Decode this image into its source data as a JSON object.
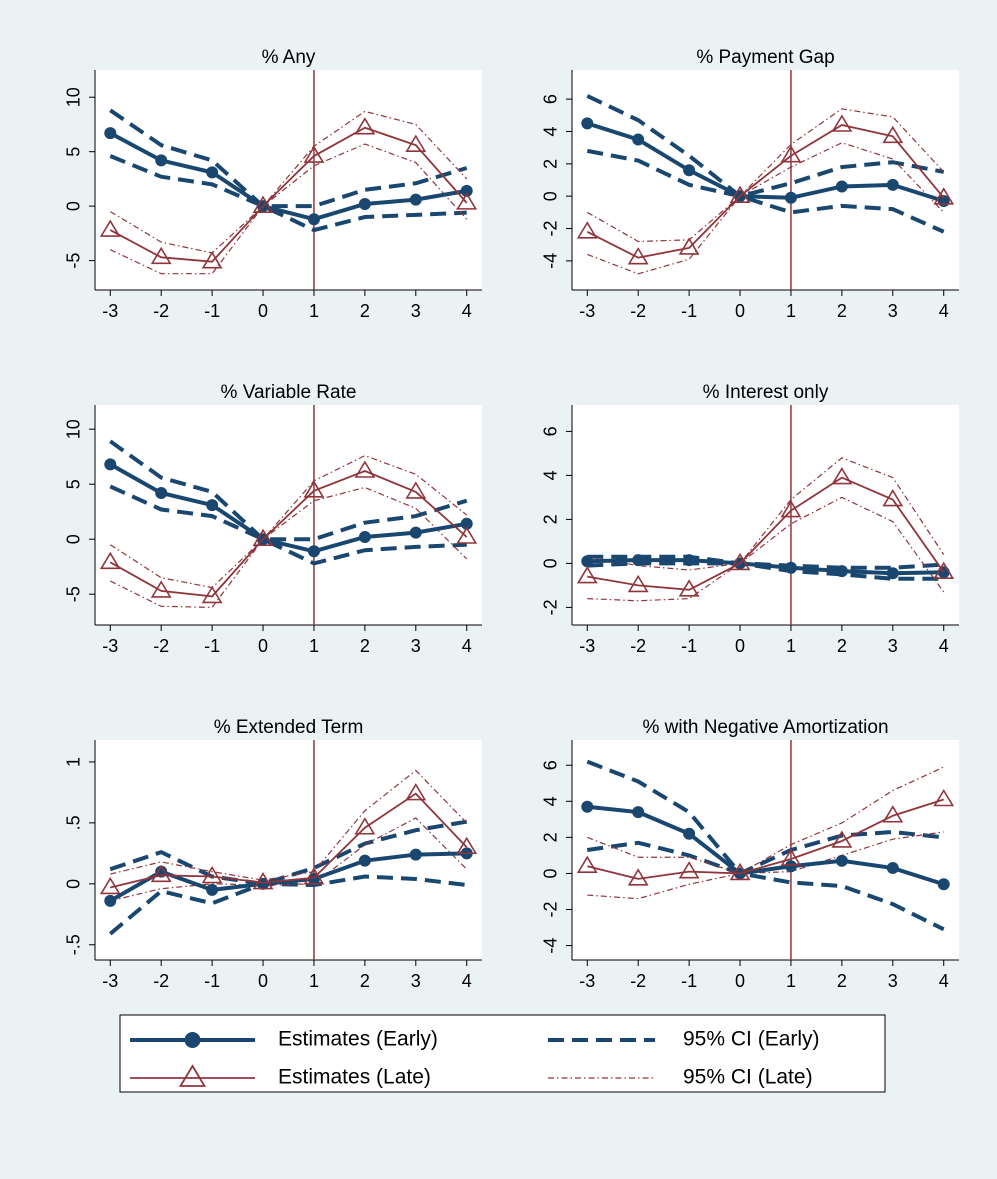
{
  "chart_data": [
    {
      "type": "line",
      "title": "% Any",
      "x": [
        -3,
        -2,
        -1,
        0,
        1,
        2,
        3,
        4
      ],
      "xlim": [
        -3.3,
        4.3
      ],
      "xticks": [
        -3,
        -2,
        -1,
        0,
        1,
        2,
        3,
        4
      ],
      "ylim": [
        -7.7,
        12.5
      ],
      "yticks": [
        -5,
        0,
        5,
        10
      ],
      "vline": 1,
      "vline_color": "#90353b",
      "series": [
        {
          "values": [
            6.7,
            4.2,
            3.1,
            0,
            -1.2,
            0.2,
            0.6,
            1.4
          ]
        },
        {
          "lower": [
            4.6,
            2.7,
            2.0,
            0,
            -2.2,
            -1.0,
            -0.8,
            -0.6
          ],
          "upper": [
            8.8,
            5.6,
            4.2,
            0,
            0,
            1.5,
            2.1,
            3.5
          ]
        },
        {
          "values": [
            -2.2,
            -4.7,
            -5.1,
            0,
            4.6,
            7.2,
            5.6,
            0.3
          ]
        },
        {
          "lower": [
            -4.0,
            -6.2,
            -6.2,
            0,
            3.7,
            5.7,
            4.0,
            -1.2
          ],
          "upper": [
            -0.5,
            -3.3,
            -4.3,
            0,
            5.5,
            8.7,
            7.5,
            2.5
          ]
        }
      ]
    },
    {
      "type": "line",
      "title": "% Payment Gap",
      "x": [
        -3,
        -2,
        -1,
        0,
        1,
        2,
        3,
        4
      ],
      "xlim": [
        -3.3,
        4.3
      ],
      "xticks": [
        -3,
        -2,
        -1,
        0,
        1,
        2,
        3,
        4
      ],
      "ylim": [
        -5.8,
        7.8
      ],
      "yticks": [
        -4,
        -2,
        0,
        2,
        4,
        6
      ],
      "vline": 1,
      "vline_color": "#90353b",
      "series": [
        {
          "values": [
            4.5,
            3.5,
            1.6,
            0,
            -0.1,
            0.6,
            0.7,
            -0.3
          ]
        },
        {
          "lower": [
            2.8,
            2.2,
            0.7,
            0,
            -1.0,
            -0.6,
            -0.8,
            -2.2
          ],
          "upper": [
            6.2,
            4.7,
            2.5,
            0,
            0.8,
            1.8,
            2.1,
            1.5
          ]
        },
        {
          "values": [
            -2.2,
            -3.8,
            -3.2,
            0,
            2.5,
            4.4,
            3.7,
            -0.1
          ]
        },
        {
          "lower": [
            -3.6,
            -4.8,
            -3.9,
            0,
            1.8,
            3.3,
            2.3,
            -1.0
          ],
          "upper": [
            -1.0,
            -2.8,
            -2.7,
            0,
            3.2,
            5.4,
            4.9,
            1.5
          ]
        }
      ]
    },
    {
      "type": "line",
      "title": "% Variable Rate",
      "x": [
        -3,
        -2,
        -1,
        0,
        1,
        2,
        3,
        4
      ],
      "xlim": [
        -3.3,
        4.3
      ],
      "xticks": [
        -3,
        -2,
        -1,
        0,
        1,
        2,
        3,
        4
      ],
      "ylim": [
        -7.8,
        12.2
      ],
      "yticks": [
        -5,
        0,
        5,
        10
      ],
      "vline": 1,
      "vline_color": "#90353b",
      "series": [
        {
          "values": [
            6.8,
            4.2,
            3.1,
            0,
            -1.1,
            0.2,
            0.6,
            1.4
          ]
        },
        {
          "lower": [
            4.8,
            2.7,
            2.1,
            0,
            -2.2,
            -1.0,
            -0.7,
            -0.5
          ],
          "upper": [
            8.9,
            5.6,
            4.3,
            0,
            0,
            1.5,
            2.1,
            3.5
          ]
        },
        {
          "values": [
            -2.1,
            -4.7,
            -5.2,
            0,
            4.4,
            6.2,
            4.3,
            0.2
          ]
        },
        {
          "lower": [
            -3.8,
            -6.1,
            -6.2,
            0,
            3.5,
            4.7,
            2.8,
            -1.8
          ],
          "upper": [
            -0.5,
            -3.5,
            -4.4,
            0,
            5.3,
            7.6,
            5.9,
            2.2
          ]
        }
      ]
    },
    {
      "type": "line",
      "title": "% Interest only",
      "x": [
        -3,
        -2,
        -1,
        0,
        1,
        2,
        3,
        4
      ],
      "xlim": [
        -3.3,
        4.3
      ],
      "xticks": [
        -3,
        -2,
        -1,
        0,
        1,
        2,
        3,
        4
      ],
      "ylim": [
        -2.8,
        7.2
      ],
      "yticks": [
        -2,
        0,
        2,
        4,
        6
      ],
      "vline": 1,
      "vline_color": "#90353b",
      "series": [
        {
          "values": [
            0.1,
            0.15,
            0.15,
            0,
            -0.2,
            -0.35,
            -0.45,
            -0.4
          ]
        },
        {
          "lower": [
            -0.1,
            0,
            0,
            0,
            -0.35,
            -0.5,
            -0.7,
            -0.7
          ],
          "upper": [
            0.3,
            0.3,
            0.3,
            0,
            -0.1,
            -0.2,
            -0.2,
            -0.05
          ]
        },
        {
          "values": [
            -0.6,
            -1.0,
            -1.2,
            0,
            2.4,
            3.9,
            2.9,
            -0.4
          ]
        },
        {
          "lower": [
            -1.6,
            -1.7,
            -1.6,
            0,
            1.8,
            3.0,
            1.9,
            -1.3
          ],
          "upper": [
            0.3,
            -0.1,
            -0.3,
            0,
            2.9,
            4.8,
            3.9,
            0.4
          ]
        }
      ]
    },
    {
      "type": "line",
      "title": "% Extended Term",
      "x": [
        -3,
        -2,
        -1,
        0,
        1,
        2,
        3,
        4
      ],
      "xlim": [
        -3.3,
        4.3
      ],
      "xticks": [
        -3,
        -2,
        -1,
        0,
        1,
        2,
        3,
        4
      ],
      "ylim": [
        -0.625,
        1.18
      ],
      "yticks": [
        {
          "value": -0.5,
          "label": "-.5"
        },
        0,
        {
          "value": 0.5,
          "label": ".5"
        },
        1
      ],
      "vline": 1,
      "vline_color": "#90353b",
      "series": [
        {
          "values": [
            -0.14,
            0.1,
            -0.05,
            0,
            0.04,
            0.19,
            0.24,
            0.25
          ]
        },
        {
          "lower": [
            -0.41,
            -0.06,
            -0.16,
            0,
            -0.01,
            0.06,
            0.04,
            -0.01
          ],
          "upper": [
            0.12,
            0.26,
            0.06,
            0,
            0.13,
            0.33,
            0.44,
            0.51
          ]
        },
        {
          "values": [
            -0.03,
            0.07,
            0.06,
            0.01,
            0.05,
            0.46,
            0.74,
            0.3
          ]
        },
        {
          "lower": [
            -0.14,
            -0.04,
            0,
            -0.01,
            0,
            0.32,
            0.54,
            0.12
          ],
          "upper": [
            0.08,
            0.18,
            0.1,
            0.03,
            0.1,
            0.6,
            0.93,
            0.5
          ]
        }
      ]
    },
    {
      "type": "line",
      "title": "% with Negative Amortization",
      "x": [
        -3,
        -2,
        -1,
        0,
        1,
        2,
        3,
        4
      ],
      "xlim": [
        -3.3,
        4.3
      ],
      "xticks": [
        -3,
        -2,
        -1,
        0,
        1,
        2,
        3,
        4
      ],
      "ylim": [
        -4.8,
        7.4
      ],
      "yticks": [
        -4,
        -2,
        0,
        2,
        4,
        6
      ],
      "vline": 1,
      "vline_color": "#90353b",
      "series": [
        {
          "values": [
            3.7,
            3.4,
            2.2,
            0,
            0.4,
            0.7,
            0.3,
            -0.6
          ]
        },
        {
          "lower": [
            1.3,
            1.7,
            1.0,
            0,
            -0.5,
            -0.7,
            -1.7,
            -3.1
          ],
          "upper": [
            6.2,
            5.1,
            3.4,
            0,
            1.3,
            2.1,
            2.3,
            2.0
          ]
        },
        {
          "values": [
            0.4,
            -0.3,
            0.1,
            0,
            0.8,
            1.8,
            3.2,
            4.1
          ]
        },
        {
          "lower": [
            -1.2,
            -1.4,
            -0.6,
            0,
            0.1,
            1.0,
            1.9,
            2.3
          ],
          "upper": [
            2.0,
            0.9,
            0.9,
            0,
            1.6,
            2.8,
            4.6,
            5.9
          ]
        }
      ]
    }
  ],
  "legend": [
    {
      "name": "Estimates (Early)",
      "color": "#1a476f",
      "style": "solid",
      "marker": "circle"
    },
    {
      "name": "95% CI (Early)",
      "color": "#1a476f",
      "style": "dash"
    },
    {
      "name": "Estimates (Late)",
      "color": "#90353b",
      "style": "thin",
      "marker": "triangle"
    },
    {
      "name": "95% CI (Late)",
      "color": "#90353b",
      "style": "dash-dot"
    }
  ]
}
